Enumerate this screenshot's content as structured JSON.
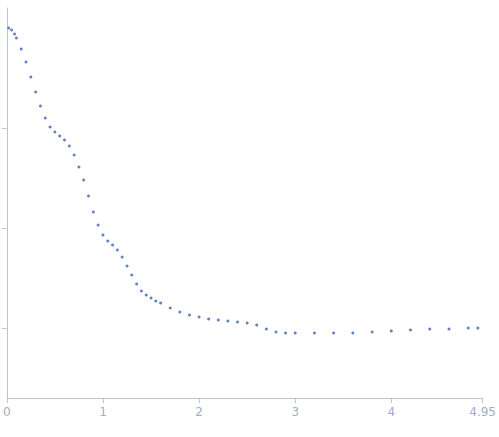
{
  "chart_data": {
    "type": "scatter",
    "color": "#3a62b4",
    "marker": "circle",
    "grid": false,
    "tick_labels": "x",
    "xlim": [
      0,
      4.95
    ],
    "xticks": [
      0,
      1,
      2,
      3,
      4
    ],
    "ylim": [
      0.3,
      4.2
    ],
    "yticks": [
      1,
      2,
      3
    ],
    "x": [
      0.02,
      0.05,
      0.08,
      0.1,
      0.15,
      0.2,
      0.25,
      0.3,
      0.35,
      0.4,
      0.45,
      0.5,
      0.55,
      0.6,
      0.65,
      0.7,
      0.75,
      0.8,
      0.85,
      0.9,
      0.95,
      1.0,
      1.05,
      1.1,
      1.15,
      1.2,
      1.25,
      1.3,
      1.35,
      1.4,
      1.45,
      1.5,
      1.55,
      1.6,
      1.7,
      1.8,
      1.9,
      2.0,
      2.1,
      2.2,
      2.3,
      2.4,
      2.5,
      2.6,
      2.7,
      2.8,
      2.9,
      3.0,
      3.2,
      3.4,
      3.6,
      3.8,
      4.0,
      4.2,
      4.4,
      4.6,
      4.8,
      4.9
    ],
    "values": [
      4.0,
      3.98,
      3.94,
      3.9,
      3.79,
      3.66,
      3.51,
      3.36,
      3.22,
      3.1,
      3.01,
      2.96,
      2.92,
      2.88,
      2.82,
      2.73,
      2.61,
      2.48,
      2.32,
      2.16,
      2.03,
      1.93,
      1.87,
      1.83,
      1.78,
      1.71,
      1.62,
      1.53,
      1.44,
      1.37,
      1.33,
      1.3,
      1.27,
      1.25,
      1.2,
      1.16,
      1.13,
      1.11,
      1.09,
      1.08,
      1.07,
      1.06,
      1.05,
      1.03,
      0.99,
      0.96,
      0.95,
      0.95,
      0.95,
      0.95,
      0.95,
      0.96,
      0.97,
      0.98,
      0.99,
      0.99,
      1.0,
      1.0
    ]
  }
}
